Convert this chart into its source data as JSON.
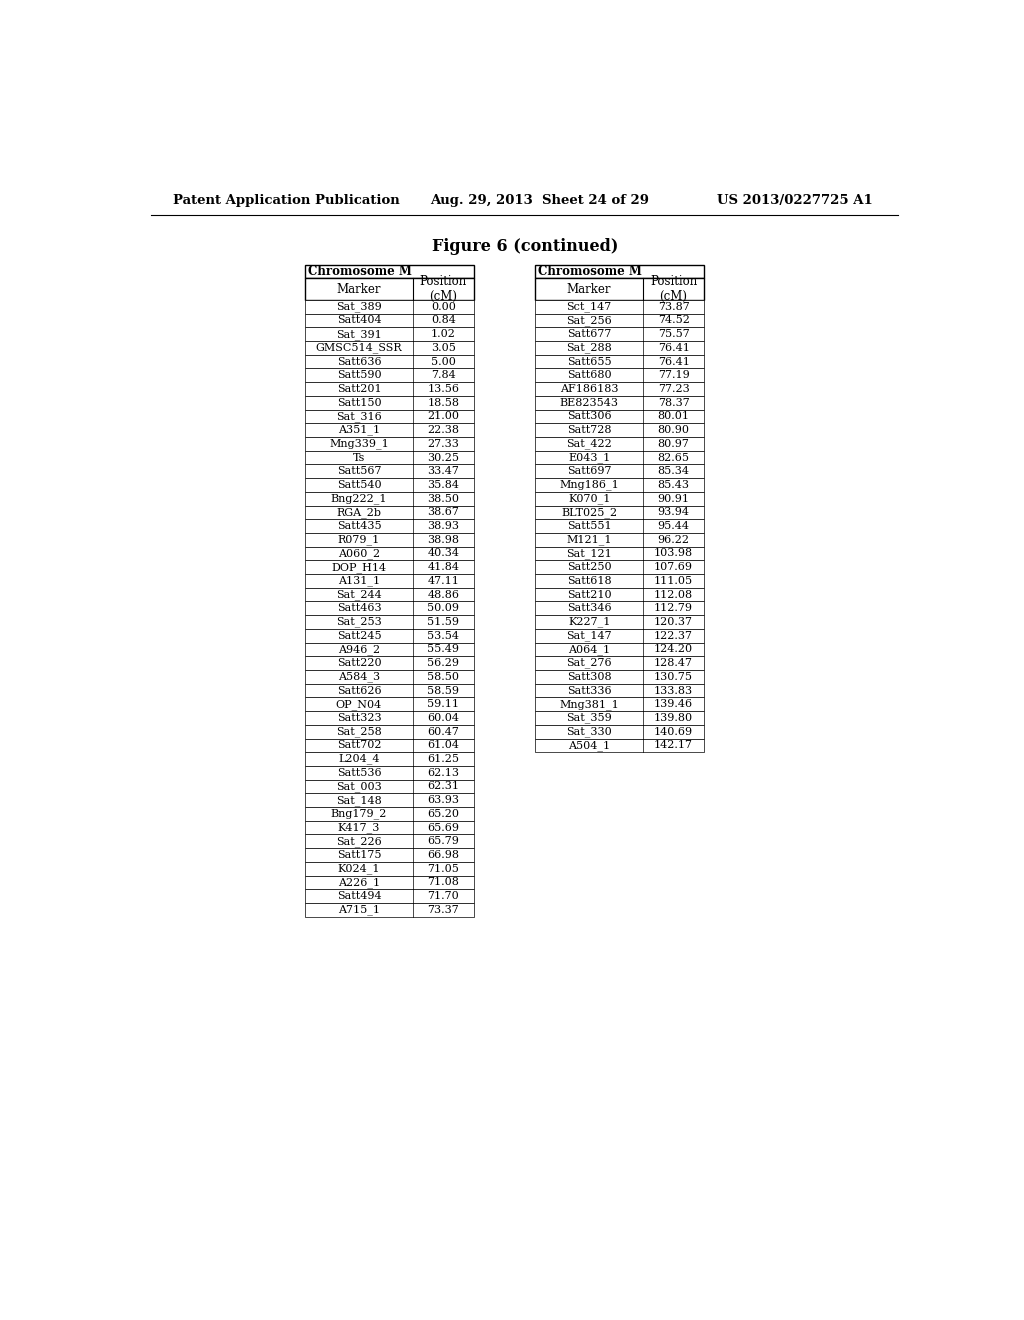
{
  "header_left": "Patent Application Publication",
  "header_center": "Aug. 29, 2013  Sheet 24 of 29",
  "header_right": "US 2013/0227725 A1",
  "figure_title": "Figure 6 (continued)",
  "table1_header": "Chromosome M",
  "table2_header": "Chromosome M",
  "table1_data": [
    [
      "Sat_389",
      "0.00"
    ],
    [
      "Satt404",
      "0.84"
    ],
    [
      "Sat_391",
      "1.02"
    ],
    [
      "GMSC514_SSR",
      "3.05"
    ],
    [
      "Satt636",
      "5.00"
    ],
    [
      "Satt590",
      "7.84"
    ],
    [
      "Satt201",
      "13.56"
    ],
    [
      "Satt150",
      "18.58"
    ],
    [
      "Sat_316",
      "21.00"
    ],
    [
      "A351_1",
      "22.38"
    ],
    [
      "Mng339_1",
      "27.33"
    ],
    [
      "Ts",
      "30.25"
    ],
    [
      "Satt567",
      "33.47"
    ],
    [
      "Satt540",
      "35.84"
    ],
    [
      "Bng222_1",
      "38.50"
    ],
    [
      "RGA_2b",
      "38.67"
    ],
    [
      "Satt435",
      "38.93"
    ],
    [
      "R079_1",
      "38.98"
    ],
    [
      "A060_2",
      "40.34"
    ],
    [
      "DOP_H14",
      "41.84"
    ],
    [
      "A131_1",
      "47.11"
    ],
    [
      "Sat_244",
      "48.86"
    ],
    [
      "Satt463",
      "50.09"
    ],
    [
      "Sat_253",
      "51.59"
    ],
    [
      "Satt245",
      "53.54"
    ],
    [
      "A946_2",
      "55.49"
    ],
    [
      "Satt220",
      "56.29"
    ],
    [
      "A584_3",
      "58.50"
    ],
    [
      "Satt626",
      "58.59"
    ],
    [
      "OP_N04",
      "59.11"
    ],
    [
      "Satt323",
      "60.04"
    ],
    [
      "Sat_258",
      "60.47"
    ],
    [
      "Satt702",
      "61.04"
    ],
    [
      "L204_4",
      "61.25"
    ],
    [
      "Satt536",
      "62.13"
    ],
    [
      "Sat_003",
      "62.31"
    ],
    [
      "Sat_148",
      "63.93"
    ],
    [
      "Bng179_2",
      "65.20"
    ],
    [
      "K417_3",
      "65.69"
    ],
    [
      "Sat_226",
      "65.79"
    ],
    [
      "Satt175",
      "66.98"
    ],
    [
      "K024_1",
      "71.05"
    ],
    [
      "A226_1",
      "71.08"
    ],
    [
      "Satt494",
      "71.70"
    ],
    [
      "A715_1",
      "73.37"
    ]
  ],
  "table2_data": [
    [
      "Sct_147",
      "73.87"
    ],
    [
      "Sat_256",
      "74.52"
    ],
    [
      "Satt677",
      "75.57"
    ],
    [
      "Sat_288",
      "76.41"
    ],
    [
      "Satt655",
      "76.41"
    ],
    [
      "Satt680",
      "77.19"
    ],
    [
      "AF186183",
      "77.23"
    ],
    [
      "BE823543",
      "78.37"
    ],
    [
      "Satt306",
      "80.01"
    ],
    [
      "Satt728",
      "80.90"
    ],
    [
      "Sat_422",
      "80.97"
    ],
    [
      "E043_1",
      "82.65"
    ],
    [
      "Satt697",
      "85.34"
    ],
    [
      "Mng186_1",
      "85.43"
    ],
    [
      "K070_1",
      "90.91"
    ],
    [
      "BLT025_2",
      "93.94"
    ],
    [
      "Satt551",
      "95.44"
    ],
    [
      "M121_1",
      "96.22"
    ],
    [
      "Sat_121",
      "103.98"
    ],
    [
      "Satt250",
      "107.69"
    ],
    [
      "Satt618",
      "111.05"
    ],
    [
      "Satt210",
      "112.08"
    ],
    [
      "Satt346",
      "112.79"
    ],
    [
      "K227_1",
      "120.37"
    ],
    [
      "Sat_147",
      "122.37"
    ],
    [
      "A064_1",
      "124.20"
    ],
    [
      "Sat_276",
      "128.47"
    ],
    [
      "Satt308",
      "130.75"
    ],
    [
      "Satt336",
      "133.83"
    ],
    [
      "Mng381_1",
      "139.46"
    ],
    [
      "Sat_359",
      "139.80"
    ],
    [
      "Sat_330",
      "140.69"
    ],
    [
      "A504_1",
      "142.17"
    ]
  ],
  "bg_color": "#ffffff",
  "text_color": "#000000",
  "header_font_size": 9.5,
  "title_font_size": 11.5,
  "table_font_size": 8.0,
  "col_header_font_size": 8.5
}
